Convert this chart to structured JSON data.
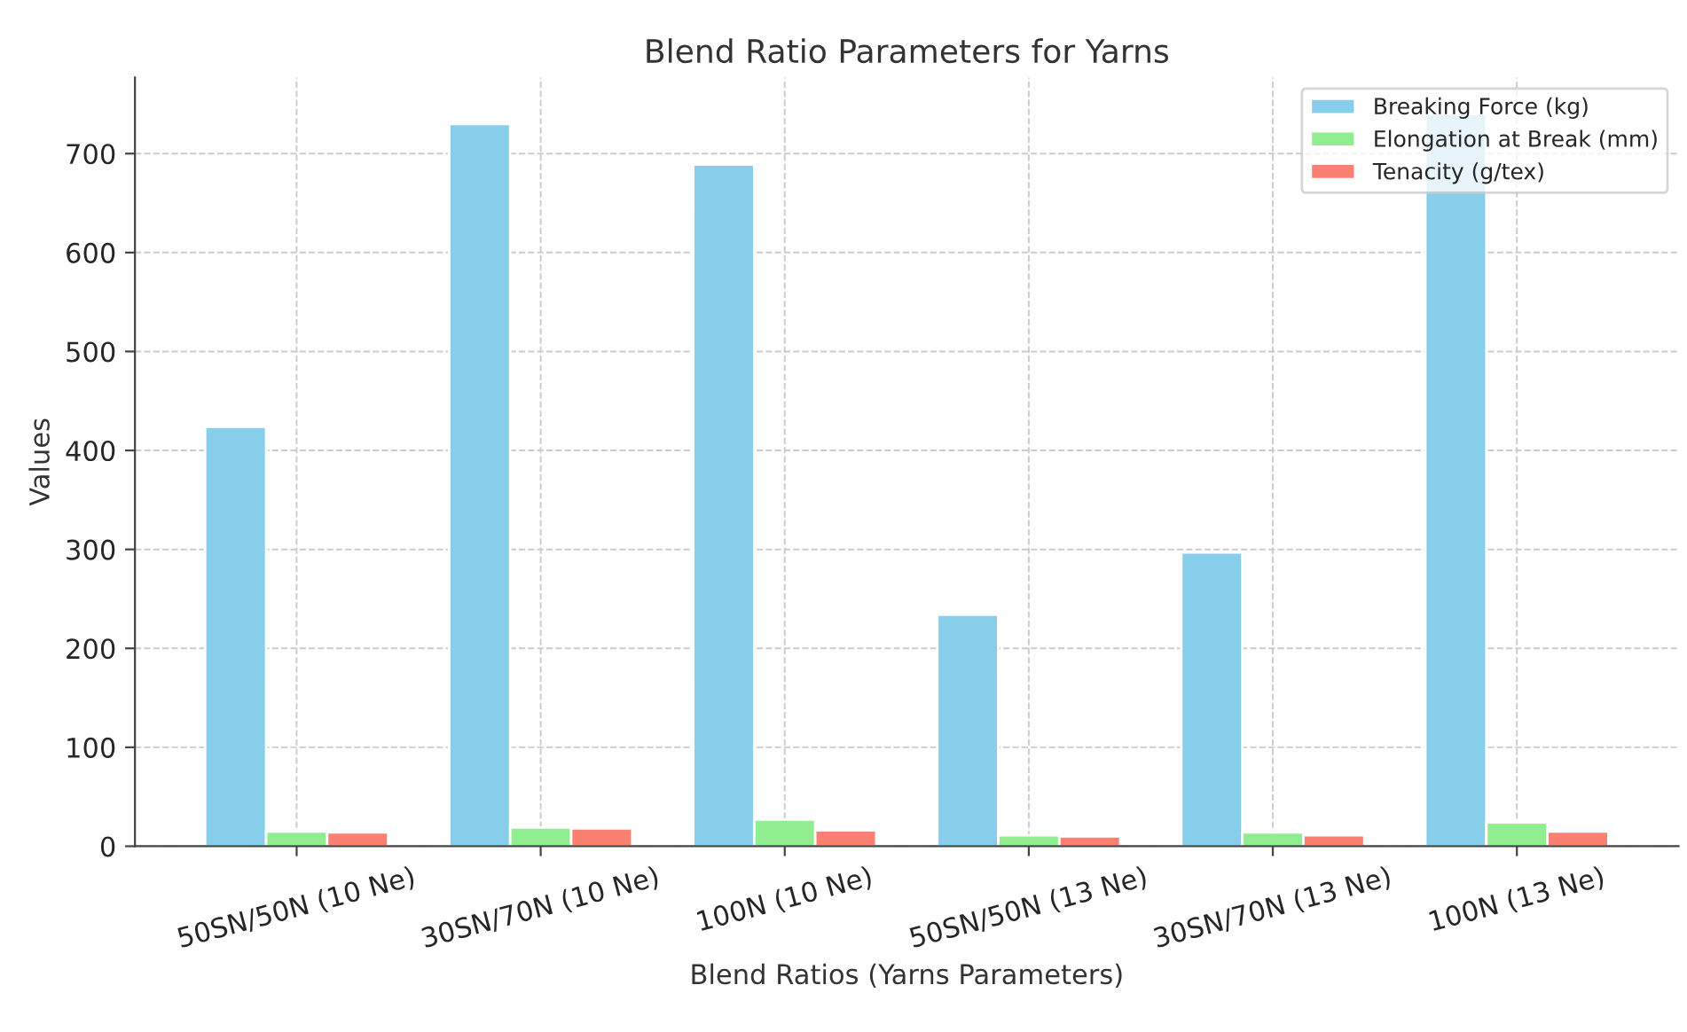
{
  "chart_data": {
    "type": "bar",
    "title": "Blend Ratio Parameters for Yarns",
    "xlabel": "Blend Ratios (Yarns Parameters)",
    "ylabel": "Values",
    "categories": [
      "50SN/50N (10 Ne)",
      "30SN/70N (10 Ne)",
      "100N (10 Ne)",
      "50SN/50N (13 Ne)",
      "30SN/70N (13 Ne)",
      "100N (13 Ne)"
    ],
    "series": [
      {
        "name": "Breaking Force (kg)",
        "color": "#87ceeb",
        "values": [
          424,
          730,
          689,
          234,
          297,
          740
        ]
      },
      {
        "name": "Elongation at Break (mm)",
        "color": "#90ee90",
        "values": [
          15,
          19,
          27,
          11,
          14,
          24
        ]
      },
      {
        "name": "Tenacity (g/tex)",
        "color": "#fa8072",
        "values": [
          14,
          18,
          16,
          10,
          11,
          15
        ]
      }
    ],
    "ylim": [
      0,
      777
    ],
    "yticks": [
      0,
      100,
      200,
      300,
      400,
      500,
      600,
      700
    ],
    "grid": true,
    "legend": "top right"
  }
}
